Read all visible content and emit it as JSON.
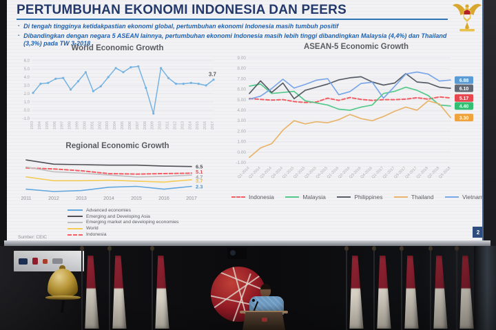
{
  "slide": {
    "title": "PERTUMBUHAN EKONOMI INDONESIA DAN PEERS",
    "bullets": [
      "Di tengah tingginya ketidakpastian ekonomi global, pertumbuhan ekonomi Indonesia masih tumbuh positif",
      "Dibandingkan dengan negara 5 ASEAN lainnya, pertumbuhan ekonomi Indonesia masih lebih tinggi dibandingkan Malaysia (4,4%) dan Thailand (3,3%) pada TW 3-2018"
    ],
    "source": "Sumber: CEIC",
    "page_number": "2",
    "emblem": "garuda-pancasila",
    "colors": {
      "title_navy": "#23396b",
      "bullet_blue": "#1f61b0",
      "underline_blue": "#2e75b6"
    }
  },
  "chart_data": [
    {
      "type": "line",
      "title": "World Economic Growth",
      "x": [
        "1993",
        "1994",
        "1995",
        "1996",
        "1997",
        "1998",
        "1999",
        "2000",
        "2001",
        "2002",
        "2003",
        "2004",
        "2005",
        "2006",
        "2007",
        "2008",
        "2009",
        "2010",
        "2011",
        "2012",
        "2013",
        "2014",
        "2015",
        "2016",
        "2017"
      ],
      "ylim": [
        -1.0,
        6.0
      ],
      "yticks": [
        6.0,
        5.0,
        4.0,
        3.0,
        2.0,
        1.0,
        0.0,
        -1.0
      ],
      "grid": true,
      "legend_position": "none",
      "series": [
        {
          "name": "World",
          "color": "#74b2e2",
          "markers": true,
          "values": [
            2.1,
            3.2,
            3.3,
            3.8,
            3.9,
            2.5,
            3.5,
            4.6,
            2.3,
            2.9,
            4.0,
            5.1,
            4.6,
            5.2,
            5.3,
            2.7,
            -0.4,
            5.1,
            3.9,
            3.2,
            3.2,
            3.3,
            3.2,
            3.0,
            3.7
          ],
          "end_label": "3.7",
          "end_color": "#595959",
          "end_pos": "above"
        }
      ]
    },
    {
      "type": "line",
      "title": "Regional Economic Growth",
      "x": [
        "2011",
        "2012",
        "2013",
        "2014",
        "2015",
        "2016",
        "2017"
      ],
      "ylim": [
        1.2,
        8.8
      ],
      "yticks": [],
      "grid": false,
      "legend_position": "bottom-stacked",
      "legend_order": [
        4,
        0,
        2,
        3,
        1
      ],
      "series": [
        {
          "name": "Emerging and Developing Asia",
          "color": "#4d4f52",
          "values": [
            7.9,
            7.0,
            6.9,
            6.8,
            6.8,
            6.6,
            6.5
          ],
          "end_label": "6.5",
          "end_color": "#4d4f52",
          "end_dy": 0
        },
        {
          "name": "Indonesia",
          "color": "#f25c62",
          "dash": true,
          "values": [
            6.2,
            6.0,
            5.6,
            5.0,
            4.9,
            5.0,
            5.1
          ],
          "end_label": "5.1",
          "end_color": "#e8474f",
          "end_dy": -2.5
        },
        {
          "name": "Emerging market and developing economies",
          "color": "#bfbdc0",
          "values": [
            6.4,
            5.4,
            5.1,
            4.7,
            4.3,
            4.4,
            4.7
          ],
          "end_label": "4.7",
          "end_color": "#9fa0a3",
          "end_dy": 2.5
        },
        {
          "name": "World",
          "color": "#f4cb57",
          "values": [
            4.3,
            3.5,
            3.5,
            3.6,
            3.4,
            3.2,
            3.7
          ],
          "end_label": "3.7",
          "end_color": "#e9b94a",
          "end_dy": 1
        },
        {
          "name": "Advanced economies",
          "color": "#62a8de",
          "values": [
            1.7,
            1.2,
            1.4,
            2.1,
            2.3,
            1.7,
            2.3
          ],
          "end_label": "2.3",
          "end_color": "#3e9bd6",
          "end_dy": 0
        }
      ]
    },
    {
      "type": "line",
      "title": "ASEAN-5 Economic Growth",
      "x": [
        "Q1-2014",
        "Q2-2014",
        "Q3-2014",
        "Q4-2014",
        "Q1-2015",
        "Q2-2015",
        "Q3-2015",
        "Q4-2015",
        "Q1-2016",
        "Q2-2016",
        "Q3-2016",
        "Q4-2016",
        "Q1-2017",
        "Q2-2017",
        "Q3-2017",
        "Q4-2017",
        "Q1-2018",
        "Q2-2018",
        "Q3-2018"
      ],
      "ylim": [
        -1.0,
        9.0
      ],
      "yticks": [
        9.0,
        8.0,
        7.0,
        6.0,
        5.0,
        4.0,
        3.0,
        2.0,
        1.0,
        0.0,
        -1.0
      ],
      "grid": true,
      "legend_position": "bottom-row",
      "series": [
        {
          "name": "Indonesia",
          "color": "#f25c62",
          "dash": true,
          "values": [
            5.12,
            5.03,
            4.97,
            5.01,
            4.83,
            4.74,
            4.78,
            5.15,
            4.94,
            5.21,
            5.03,
            4.94,
            5.01,
            5.01,
            5.06,
            5.19,
            5.06,
            5.27,
            5.17
          ],
          "badge": "5.17",
          "badge_color": "#e8474f"
        },
        {
          "name": "Malaysia",
          "color": "#52c98a",
          "values": [
            6.3,
            6.5,
            5.6,
            5.7,
            5.8,
            4.9,
            4.7,
            4.5,
            4.1,
            4.0,
            4.3,
            4.5,
            5.6,
            5.8,
            6.2,
            5.9,
            5.4,
            4.5,
            4.4
          ],
          "badge": "4.40",
          "badge_color": "#33be72"
        },
        {
          "name": "Philippines",
          "color": "#575d66",
          "values": [
            5.6,
            6.8,
            5.7,
            6.6,
            5.1,
            5.9,
            6.2,
            6.5,
            6.9,
            7.1,
            7.2,
            6.7,
            6.4,
            6.6,
            7.5,
            6.7,
            6.6,
            6.2,
            6.1
          ],
          "badge": "6.10",
          "badge_color": "#636a75"
        },
        {
          "name": "Thailand",
          "color": "#e9b469",
          "values": [
            -0.5,
            0.4,
            0.8,
            2.1,
            3.0,
            2.7,
            2.9,
            2.8,
            3.1,
            3.6,
            3.2,
            3.0,
            3.4,
            3.9,
            4.3,
            4.0,
            4.9,
            4.6,
            3.3
          ],
          "badge": "3.30",
          "badge_color": "#f0a23c"
        },
        {
          "name": "Vietnam",
          "color": "#7aa6e8",
          "values": [
            5.06,
            5.34,
            6.07,
            6.96,
            6.12,
            6.47,
            6.87,
            7.01,
            5.48,
            5.78,
            6.56,
            6.68,
            5.15,
            6.28,
            7.46,
            7.65,
            7.45,
            6.79,
            6.88
          ],
          "badge": "6.88",
          "badge_color": "#5b9bd5"
        }
      ]
    }
  ],
  "scene": {
    "description": "dark auditorium below projection screen",
    "objects": [
      "sponsor-banner",
      "ceremony-bell",
      "indonesian-flags",
      "globe-sculpture",
      "speaker-at-podium",
      "ceiling-camera"
    ],
    "colors": {
      "flag_red": "#8e2130",
      "flag_white": "#d8d2c6",
      "sphere_red": "#8c1722",
      "bell_gold": "#c9a33b",
      "shirt_blue": "#6d9bc3"
    }
  }
}
